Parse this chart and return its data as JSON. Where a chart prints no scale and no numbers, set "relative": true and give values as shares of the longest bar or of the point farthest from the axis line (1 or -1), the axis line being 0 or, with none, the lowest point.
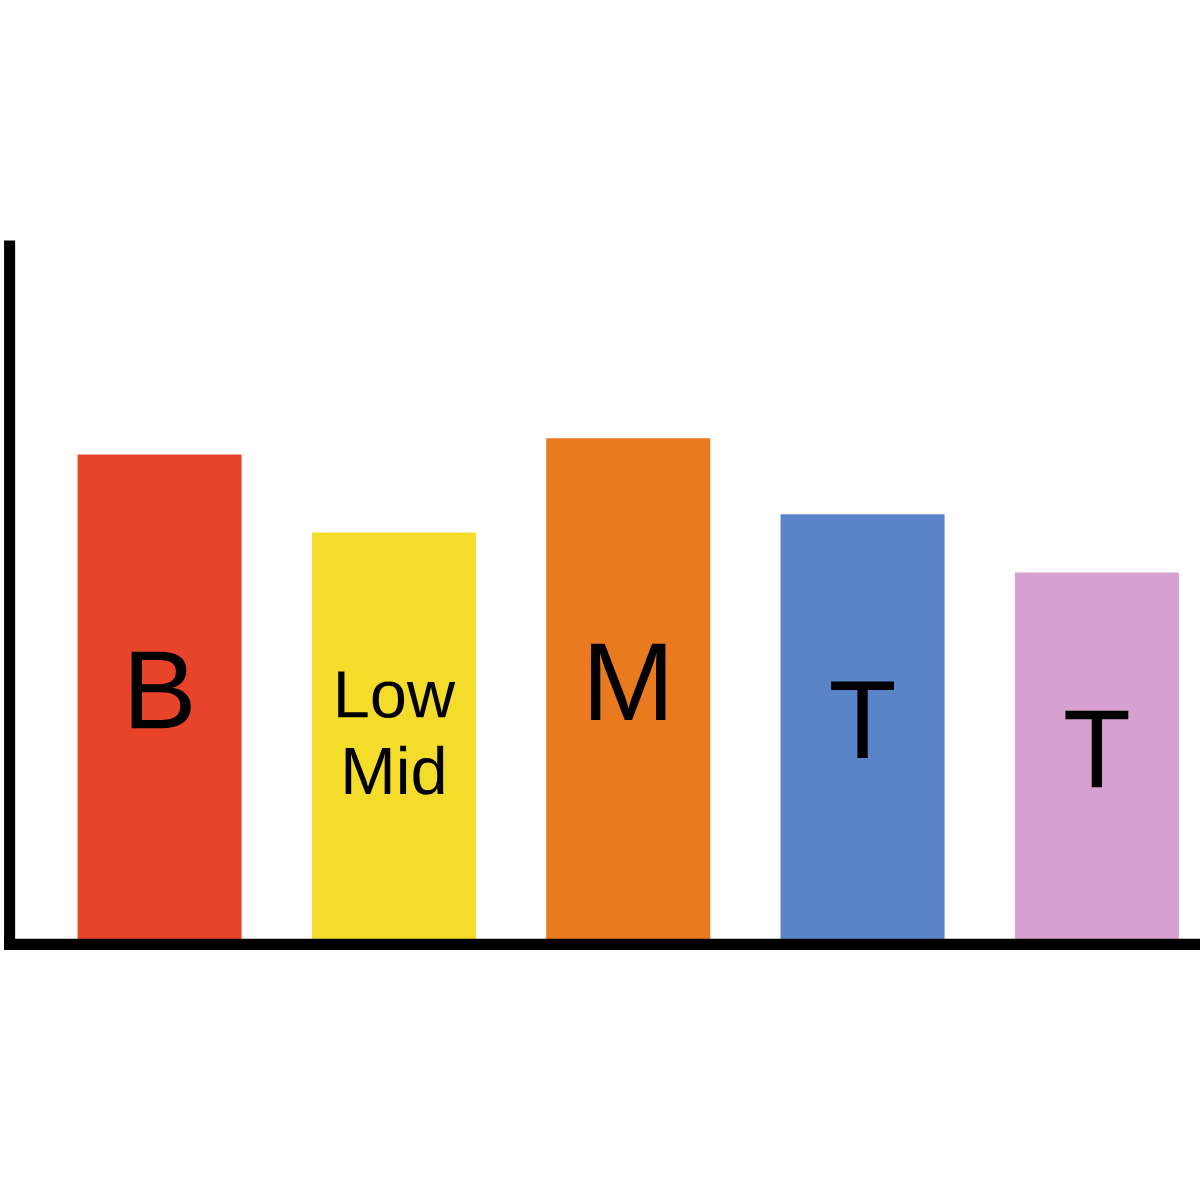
{
  "chart_data": {
    "type": "bar",
    "relative": true,
    "categories": [
      "B",
      "Low\nMid",
      "M",
      "T",
      "T"
    ],
    "values": [
      0.968,
      0.814,
      1,
      0.85,
      0.735
    ],
    "colors": [
      "#e8442a",
      "#f3dc2a",
      "#ea7a1f",
      "#5a84c8",
      "#d6a0d0"
    ]
  }
}
